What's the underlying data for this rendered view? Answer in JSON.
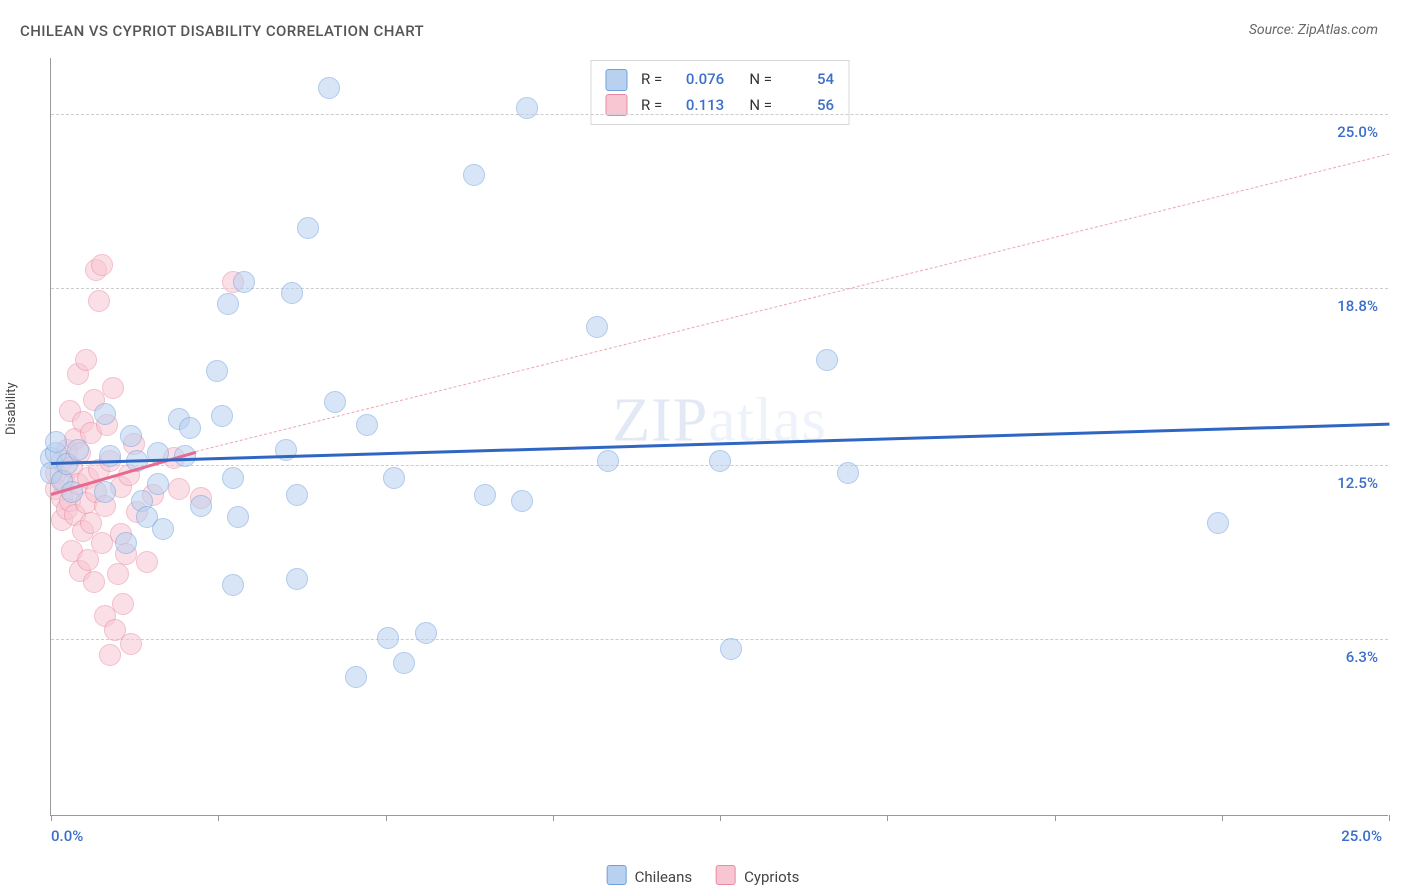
{
  "title": "CHILEAN VS CYPRIOT DISABILITY CORRELATION CHART",
  "source_label": "Source: ZipAtlas.com",
  "watermark": "ZIPatlas",
  "y_axis_label": "Disability",
  "axes": {
    "xlim": [
      0,
      25
    ],
    "ylim": [
      0,
      27
    ],
    "x_ticks": [
      0,
      3.125,
      6.25,
      9.375,
      12.5,
      15.625,
      18.75,
      21.875,
      25
    ],
    "x_left_label": "0.0%",
    "x_right_label": "25.0%",
    "y_gridlines": [
      6.3,
      12.5,
      18.8,
      25.0
    ],
    "y_tick_labels": [
      "6.3%",
      "12.5%",
      "18.8%",
      "25.0%"
    ],
    "grid_color": "#cccccc",
    "axis_color": "#999999",
    "tick_label_color": "#3b6fc9",
    "tick_label_fontsize": 15
  },
  "series": [
    {
      "name": "Chileans",
      "color_fill": "#b9d1f0",
      "color_stroke": "#6fa0dd",
      "marker_radius": 10,
      "fill_opacity": 0.55,
      "R": "0.076",
      "N": "54",
      "trend": {
        "x1": 0,
        "y1": 12.6,
        "x2": 25,
        "y2": 14.0,
        "width": 3,
        "color": "#2f66c4",
        "dashed": false
      },
      "points": [
        [
          0.0,
          12.7
        ],
        [
          0.0,
          12.2
        ],
        [
          0.1,
          12.9
        ],
        [
          0.1,
          13.3
        ],
        [
          0.2,
          11.9
        ],
        [
          0.3,
          12.5
        ],
        [
          0.4,
          11.5
        ],
        [
          0.5,
          13.0
        ],
        [
          1.0,
          14.3
        ],
        [
          1.0,
          11.5
        ],
        [
          1.1,
          12.8
        ],
        [
          1.4,
          9.7
        ],
        [
          1.5,
          13.5
        ],
        [
          1.6,
          12.6
        ],
        [
          1.7,
          11.2
        ],
        [
          1.8,
          10.6
        ],
        [
          2.0,
          11.8
        ],
        [
          2.0,
          12.9
        ],
        [
          2.1,
          10.2
        ],
        [
          2.4,
          14.1
        ],
        [
          2.5,
          12.8
        ],
        [
          2.6,
          13.8
        ],
        [
          2.8,
          11.0
        ],
        [
          3.1,
          15.8
        ],
        [
          3.2,
          14.2
        ],
        [
          3.3,
          18.2
        ],
        [
          3.4,
          8.2
        ],
        [
          3.4,
          12.0
        ],
        [
          3.5,
          10.6
        ],
        [
          3.6,
          19.0
        ],
        [
          4.4,
          13.0
        ],
        [
          4.5,
          18.6
        ],
        [
          4.6,
          8.4
        ],
        [
          4.6,
          11.4
        ],
        [
          4.8,
          20.9
        ],
        [
          5.2,
          25.9
        ],
        [
          5.3,
          14.7
        ],
        [
          5.7,
          4.9
        ],
        [
          5.9,
          13.9
        ],
        [
          6.3,
          6.3
        ],
        [
          6.4,
          12.0
        ],
        [
          6.6,
          5.4
        ],
        [
          7.0,
          6.5
        ],
        [
          7.9,
          22.8
        ],
        [
          8.1,
          11.4
        ],
        [
          8.8,
          11.2
        ],
        [
          8.9,
          25.2
        ],
        [
          10.2,
          17.4
        ],
        [
          10.4,
          12.6
        ],
        [
          12.5,
          12.6
        ],
        [
          12.7,
          5.9
        ],
        [
          14.5,
          16.2
        ],
        [
          14.9,
          12.2
        ],
        [
          21.8,
          10.4
        ]
      ]
    },
    {
      "name": "Cypriots",
      "color_fill": "#f7c6d2",
      "color_stroke": "#e98ba5",
      "marker_radius": 10,
      "fill_opacity": 0.55,
      "R": "0.113",
      "N": "56",
      "trend_solid": {
        "x1": 0,
        "y1": 11.5,
        "x2": 2.7,
        "y2": 13.0,
        "width": 3,
        "color": "#e86b8f",
        "dashed": false
      },
      "trend_dashed": {
        "x1": 2.7,
        "y1": 13.0,
        "x2": 25,
        "y2": 23.6,
        "width": 1.5,
        "color": "#eea5b9",
        "dashed": true
      },
      "points": [
        [
          0.1,
          11.6
        ],
        [
          0.1,
          12.2
        ],
        [
          0.2,
          11.3
        ],
        [
          0.2,
          12.6
        ],
        [
          0.2,
          10.5
        ],
        [
          0.25,
          11.9
        ],
        [
          0.3,
          13.0
        ],
        [
          0.3,
          10.9
        ],
        [
          0.35,
          14.4
        ],
        [
          0.35,
          11.2
        ],
        [
          0.4,
          12.4
        ],
        [
          0.4,
          9.4
        ],
        [
          0.45,
          13.4
        ],
        [
          0.45,
          10.7
        ],
        [
          0.5,
          15.7
        ],
        [
          0.5,
          11.8
        ],
        [
          0.55,
          12.9
        ],
        [
          0.55,
          8.7
        ],
        [
          0.6,
          14.0
        ],
        [
          0.6,
          10.1
        ],
        [
          0.65,
          16.2
        ],
        [
          0.65,
          11.1
        ],
        [
          0.7,
          12.0
        ],
        [
          0.7,
          9.1
        ],
        [
          0.75,
          13.6
        ],
        [
          0.75,
          10.4
        ],
        [
          0.8,
          14.8
        ],
        [
          0.8,
          8.3
        ],
        [
          0.85,
          19.4
        ],
        [
          0.85,
          11.5
        ],
        [
          0.9,
          18.3
        ],
        [
          0.9,
          12.3
        ],
        [
          0.95,
          19.6
        ],
        [
          0.95,
          9.7
        ],
        [
          1.0,
          7.1
        ],
        [
          1.0,
          11.0
        ],
        [
          1.05,
          13.9
        ],
        [
          1.1,
          5.7
        ],
        [
          1.1,
          12.6
        ],
        [
          1.15,
          15.2
        ],
        [
          1.2,
          6.6
        ],
        [
          1.25,
          8.6
        ],
        [
          1.3,
          10.0
        ],
        [
          1.3,
          11.7
        ],
        [
          1.35,
          7.5
        ],
        [
          1.4,
          9.3
        ],
        [
          1.45,
          12.1
        ],
        [
          1.5,
          6.1
        ],
        [
          1.55,
          13.2
        ],
        [
          1.6,
          10.8
        ],
        [
          1.8,
          9.0
        ],
        [
          1.9,
          11.4
        ],
        [
          2.3,
          12.7
        ],
        [
          2.4,
          11.6
        ],
        [
          2.8,
          11.3
        ],
        [
          3.4,
          19.0
        ]
      ]
    }
  ],
  "bottom_legend": [
    {
      "label": "Chileans",
      "fill": "#b9d1f0",
      "stroke": "#6fa0dd"
    },
    {
      "label": "Cypriots",
      "fill": "#f7c6d2",
      "stroke": "#e98ba5"
    }
  ],
  "stats_box": {
    "border_color": "#d8d8d8",
    "rows": [
      {
        "fill": "#b9d1f0",
        "stroke": "#6fa0dd",
        "R": "0.076",
        "N": "54"
      },
      {
        "fill": "#f7c6d2",
        "stroke": "#e98ba5",
        "R": "0.113",
        "N": "56"
      }
    ]
  }
}
